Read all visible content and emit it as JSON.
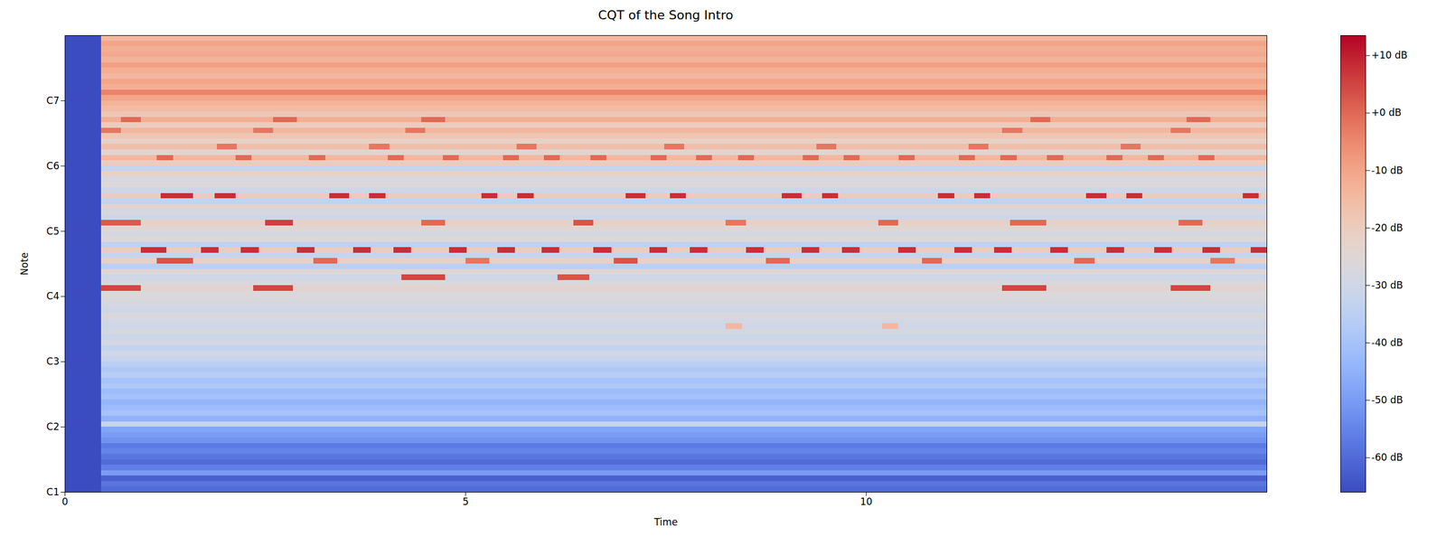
{
  "chart_data": {
    "type": "heatmap",
    "title": "CQT of the Song Intro",
    "xlabel": "Time",
    "ylabel": "Note",
    "xlim": [
      0,
      15
    ],
    "xticks": [
      0,
      5,
      10
    ],
    "ylim": [
      24,
      108
    ],
    "yticks": [
      {
        "value": 24,
        "label": "C1"
      },
      {
        "value": 36,
        "label": "C2"
      },
      {
        "value": 48,
        "label": "C3"
      },
      {
        "value": 60,
        "label": "C4"
      },
      {
        "value": 72,
        "label": "C5"
      },
      {
        "value": 84,
        "label": "C6"
      },
      {
        "value": 96,
        "label": "C7"
      }
    ],
    "colorbar": {
      "range": [
        -66,
        13.5
      ],
      "ticks": [
        {
          "value": 10,
          "label": "+10 dB"
        },
        {
          "value": 0,
          "label": "+0 dB"
        },
        {
          "value": -10,
          "label": "-10 dB"
        },
        {
          "value": -20,
          "label": "-20 dB"
        },
        {
          "value": -30,
          "label": "-30 dB"
        },
        {
          "value": -40,
          "label": "-40 dB"
        },
        {
          "value": -50,
          "label": "-50 dB"
        },
        {
          "value": -60,
          "label": "-60 dB"
        }
      ]
    },
    "cells": [
      [
        0,
        0.45,
        24,
        108,
        -66
      ],
      [
        0.45,
        15,
        24,
        25,
        -60
      ],
      [
        0.45,
        15,
        25,
        26,
        -58
      ],
      [
        0.45,
        15,
        26,
        27,
        -62
      ],
      [
        0.45,
        15,
        27,
        28,
        -50
      ],
      [
        0.45,
        15,
        28,
        29,
        -56
      ],
      [
        0.45,
        15,
        29,
        30,
        -60
      ],
      [
        0.45,
        15,
        30,
        31,
        -58
      ],
      [
        0.45,
        15,
        31,
        32,
        -55
      ],
      [
        0.45,
        15,
        32,
        33,
        -57
      ],
      [
        0.45,
        15,
        33,
        34,
        -52
      ],
      [
        0.45,
        15,
        34,
        35,
        -50
      ],
      [
        0.45,
        15,
        35,
        36,
        -48
      ],
      [
        0.45,
        15,
        36,
        37,
        -32
      ],
      [
        0.45,
        15,
        37,
        38,
        -45
      ],
      [
        0.45,
        15,
        38,
        39,
        -40
      ],
      [
        0.45,
        15,
        39,
        40,
        -42
      ],
      [
        0.45,
        15,
        40,
        41,
        -44
      ],
      [
        0.45,
        15,
        41,
        42,
        -40
      ],
      [
        0.45,
        15,
        42,
        43,
        -42
      ],
      [
        0.45,
        15,
        43,
        44,
        -38
      ],
      [
        0.45,
        15,
        44,
        45,
        -40
      ],
      [
        0.45,
        15,
        45,
        46,
        -36
      ],
      [
        0.45,
        15,
        46,
        47,
        -38
      ],
      [
        0.45,
        15,
        47,
        48,
        -35
      ],
      [
        0.45,
        15,
        48,
        49,
        -32
      ],
      [
        0.45,
        15,
        49,
        50,
        -30
      ],
      [
        0.45,
        15,
        50,
        51,
        -33
      ],
      [
        0.45,
        15,
        51,
        52,
        -29
      ],
      [
        0.45,
        15,
        52,
        53,
        -31
      ],
      [
        0.45,
        15,
        53,
        54,
        -28
      ],
      [
        0.45,
        15,
        54,
        55,
        -30
      ],
      [
        0.45,
        15,
        55,
        56,
        -29
      ],
      [
        0.45,
        15,
        56,
        57,
        -27
      ],
      [
        0.45,
        15,
        57,
        58,
        -30
      ],
      [
        0.45,
        15,
        58,
        59,
        -28
      ],
      [
        0.45,
        15,
        59,
        60,
        -27
      ],
      [
        0.45,
        15,
        60,
        61,
        -26
      ],
      [
        0.45,
        15,
        61,
        62,
        -24
      ],
      [
        0.45,
        15,
        62,
        63,
        -27
      ],
      [
        0.45,
        15,
        63,
        64,
        -30
      ],
      [
        0.45,
        15,
        64,
        65,
        -25
      ],
      [
        0.45,
        15,
        65,
        66,
        -35
      ],
      [
        0.45,
        15,
        66,
        67,
        -22
      ],
      [
        0.45,
        15,
        67,
        68,
        -32
      ],
      [
        0.45,
        15,
        68,
        69,
        -20
      ],
      [
        0.45,
        15,
        69,
        70,
        -34
      ],
      [
        0.45,
        15,
        70,
        71,
        -26
      ],
      [
        0.45,
        15,
        71,
        72,
        -28
      ],
      [
        0.45,
        15,
        72,
        73,
        -25
      ],
      [
        0.45,
        15,
        73,
        74,
        -22
      ],
      [
        0.45,
        15,
        74,
        75,
        -30
      ],
      [
        0.45,
        15,
        75,
        76,
        -28
      ],
      [
        0.45,
        15,
        76,
        77,
        -24
      ],
      [
        0.45,
        15,
        77,
        78,
        -33
      ],
      [
        0.45,
        15,
        78,
        79,
        -20
      ],
      [
        0.45,
        15,
        79,
        80,
        -30
      ],
      [
        0.45,
        15,
        80,
        81,
        -26
      ],
      [
        0.45,
        15,
        81,
        82,
        -28
      ],
      [
        0.45,
        15,
        82,
        83,
        -22
      ],
      [
        0.45,
        15,
        83,
        84,
        -32
      ],
      [
        0.45,
        15,
        84,
        85,
        -20
      ],
      [
        0.45,
        15,
        85,
        86,
        -14
      ],
      [
        0.45,
        15,
        86,
        87,
        -24
      ],
      [
        0.45,
        15,
        87,
        88,
        -16
      ],
      [
        0.45,
        15,
        88,
        89,
        -22
      ],
      [
        0.45,
        15,
        89,
        90,
        -18
      ],
      [
        0.45,
        15,
        90,
        91,
        -14
      ],
      [
        0.45,
        15,
        91,
        92,
        -20
      ],
      [
        0.45,
        15,
        92,
        93,
        -12
      ],
      [
        0.45,
        15,
        93,
        94,
        -18
      ],
      [
        0.45,
        15,
        94,
        95,
        -15
      ],
      [
        0.45,
        15,
        95,
        96,
        -13
      ],
      [
        0.45,
        15,
        96,
        97,
        -10
      ],
      [
        0.45,
        15,
        97,
        98,
        -4
      ],
      [
        0.45,
        15,
        98,
        99,
        -12
      ],
      [
        0.45,
        15,
        99,
        100,
        -10
      ],
      [
        0.45,
        15,
        100,
        101,
        -14
      ],
      [
        0.45,
        15,
        101,
        102,
        -12
      ],
      [
        0.45,
        15,
        102,
        103,
        -9
      ],
      [
        0.45,
        15,
        103,
        104,
        -13
      ],
      [
        0.45,
        15,
        104,
        105,
        -11
      ],
      [
        0.45,
        15,
        105,
        106,
        -12
      ],
      [
        0.45,
        15,
        106,
        107,
        -10
      ],
      [
        0.45,
        15,
        107,
        108,
        -14
      ],
      [
        8.25,
        8.45,
        54,
        55,
        -14
      ],
      [
        10.2,
        10.4,
        54,
        55,
        -14
      ],
      [
        0.45,
        0.95,
        61,
        62,
        5
      ],
      [
        2.35,
        2.85,
        61,
        62,
        5
      ],
      [
        11.7,
        12.25,
        61,
        62,
        5
      ],
      [
        13.8,
        14.3,
        61,
        62,
        5
      ],
      [
        4.2,
        4.75,
        63,
        64,
        5
      ],
      [
        6.15,
        6.55,
        63,
        64,
        3
      ],
      [
        1.15,
        1.6,
        66,
        67,
        3
      ],
      [
        3.1,
        3.4,
        66,
        67,
        0
      ],
      [
        5.0,
        5.3,
        66,
        67,
        -2
      ],
      [
        6.85,
        7.15,
        66,
        67,
        3
      ],
      [
        8.75,
        9.05,
        66,
        67,
        0
      ],
      [
        10.7,
        10.95,
        66,
        67,
        0
      ],
      [
        12.6,
        12.85,
        66,
        67,
        0
      ],
      [
        14.3,
        14.6,
        66,
        67,
        -2
      ],
      [
        0.95,
        1.27,
        68,
        69,
        8
      ],
      [
        1.7,
        1.92,
        68,
        69,
        8
      ],
      [
        2.2,
        2.42,
        68,
        69,
        8
      ],
      [
        2.9,
        3.12,
        68,
        69,
        8
      ],
      [
        3.6,
        3.82,
        68,
        69,
        8
      ],
      [
        4.1,
        4.32,
        68,
        69,
        8
      ],
      [
        4.8,
        5.02,
        68,
        69,
        8
      ],
      [
        5.4,
        5.62,
        68,
        69,
        8
      ],
      [
        5.95,
        6.17,
        68,
        69,
        8
      ],
      [
        6.6,
        6.82,
        68,
        69,
        8
      ],
      [
        7.3,
        7.52,
        68,
        69,
        8
      ],
      [
        7.8,
        8.02,
        68,
        69,
        8
      ],
      [
        8.5,
        8.72,
        68,
        69,
        8
      ],
      [
        9.2,
        9.42,
        68,
        69,
        8
      ],
      [
        9.7,
        9.92,
        68,
        69,
        8
      ],
      [
        10.4,
        10.62,
        68,
        69,
        8
      ],
      [
        11.1,
        11.32,
        68,
        69,
        8
      ],
      [
        11.6,
        11.82,
        68,
        69,
        8
      ],
      [
        12.3,
        12.52,
        68,
        69,
        8
      ],
      [
        13.0,
        13.22,
        68,
        69,
        8
      ],
      [
        13.6,
        13.82,
        68,
        69,
        8
      ],
      [
        14.2,
        14.42,
        68,
        69,
        8
      ],
      [
        14.8,
        15,
        68,
        69,
        8
      ],
      [
        0.45,
        0.95,
        73,
        74,
        2
      ],
      [
        2.5,
        2.85,
        73,
        74,
        6
      ],
      [
        4.45,
        4.75,
        73,
        74,
        0
      ],
      [
        6.35,
        6.6,
        73,
        74,
        3
      ],
      [
        8.25,
        8.5,
        73,
        74,
        -2
      ],
      [
        10.15,
        10.4,
        73,
        74,
        0
      ],
      [
        11.8,
        12.25,
        73,
        74,
        0
      ],
      [
        13.9,
        14.2,
        73,
        74,
        0
      ],
      [
        1.2,
        1.6,
        78,
        79,
        8
      ],
      [
        1.87,
        2.13,
        78,
        79,
        8
      ],
      [
        3.3,
        3.55,
        78,
        79,
        8
      ],
      [
        3.8,
        4.0,
        78,
        79,
        8
      ],
      [
        5.2,
        5.4,
        78,
        79,
        8
      ],
      [
        5.65,
        5.85,
        78,
        79,
        8
      ],
      [
        7.0,
        7.25,
        78,
        79,
        8
      ],
      [
        7.55,
        7.75,
        78,
        79,
        8
      ],
      [
        8.95,
        9.2,
        78,
        79,
        8
      ],
      [
        9.45,
        9.65,
        78,
        79,
        8
      ],
      [
        10.9,
        11.1,
        78,
        79,
        8
      ],
      [
        11.35,
        11.55,
        78,
        79,
        8
      ],
      [
        12.75,
        13.0,
        78,
        79,
        8
      ],
      [
        13.25,
        13.45,
        78,
        79,
        8
      ],
      [
        14.7,
        14.9,
        78,
        79,
        8
      ],
      [
        1.15,
        1.35,
        85,
        86,
        0
      ],
      [
        2.13,
        2.33,
        85,
        86,
        0
      ],
      [
        3.05,
        3.25,
        85,
        86,
        0
      ],
      [
        4.03,
        4.23,
        85,
        86,
        0
      ],
      [
        4.72,
        4.92,
        85,
        86,
        0
      ],
      [
        5.47,
        5.67,
        85,
        86,
        0
      ],
      [
        5.98,
        6.18,
        85,
        86,
        0
      ],
      [
        6.56,
        6.76,
        85,
        86,
        0
      ],
      [
        7.31,
        7.51,
        85,
        86,
        0
      ],
      [
        7.88,
        8.08,
        85,
        86,
        0
      ],
      [
        8.4,
        8.6,
        85,
        86,
        0
      ],
      [
        9.21,
        9.41,
        85,
        86,
        0
      ],
      [
        9.72,
        9.92,
        85,
        86,
        0
      ],
      [
        10.41,
        10.61,
        85,
        86,
        0
      ],
      [
        11.16,
        11.36,
        85,
        86,
        0
      ],
      [
        11.68,
        11.88,
        85,
        86,
        0
      ],
      [
        12.26,
        12.46,
        85,
        86,
        0
      ],
      [
        13.0,
        13.2,
        85,
        86,
        0
      ],
      [
        13.52,
        13.72,
        85,
        86,
        0
      ],
      [
        14.15,
        14.35,
        85,
        86,
        0
      ],
      [
        1.9,
        2.15,
        87,
        88,
        -2
      ],
      [
        3.8,
        4.05,
        87,
        88,
        -2
      ],
      [
        5.64,
        5.89,
        87,
        88,
        -2
      ],
      [
        7.48,
        7.73,
        87,
        88,
        -2
      ],
      [
        9.38,
        9.63,
        87,
        88,
        -2
      ],
      [
        11.28,
        11.53,
        87,
        88,
        -2
      ],
      [
        13.18,
        13.43,
        87,
        88,
        -2
      ],
      [
        0.45,
        0.7,
        90,
        91,
        -2
      ],
      [
        2.35,
        2.6,
        90,
        91,
        -2
      ],
      [
        4.25,
        4.5,
        90,
        91,
        -2
      ],
      [
        11.7,
        11.95,
        90,
        91,
        -2
      ],
      [
        13.8,
        14.05,
        90,
        91,
        -2
      ],
      [
        0.7,
        0.95,
        92,
        93,
        0
      ],
      [
        2.6,
        2.9,
        92,
        93,
        0
      ],
      [
        4.45,
        4.75,
        92,
        93,
        0
      ],
      [
        12.05,
        12.3,
        92,
        93,
        0
      ],
      [
        14.0,
        14.3,
        92,
        93,
        0
      ]
    ]
  }
}
